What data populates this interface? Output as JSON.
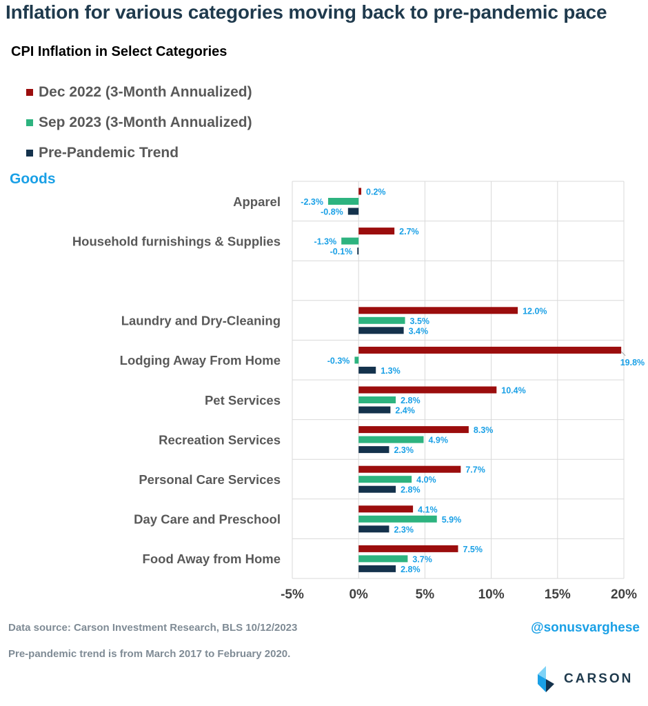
{
  "headline": "Inflation for various categories moving back to pre-pandemic pace",
  "section_label": "Goods",
  "footer": {
    "source": "Data source: Carson Investment Research, BLS   10/12/2023",
    "note": "Pre-pandemic trend is from March 2017 to February 2020.",
    "handle": "@sonusvarghese",
    "logo_text": "CARSON"
  },
  "colors": {
    "dec2022": "#9b0d0d",
    "sep2023": "#2db37f",
    "pre": "#14324c",
    "label": "#1aa0e6",
    "headline": "#1f3a4d",
    "grid": "#d9d9d9"
  },
  "chart_data": {
    "type": "bar",
    "orientation": "horizontal",
    "title": "CPI Inflation in Select Categories",
    "xlim": [
      -5,
      20
    ],
    "x_ticks": [
      "-5%",
      "0%",
      "5%",
      "10%",
      "15%",
      "20%"
    ],
    "grid": true,
    "legend_position": "top-left",
    "categories": [
      "Apparel",
      "Household furnishings & Supplies",
      "",
      "Laundry and Dry-Cleaning",
      "Lodging Away From Home",
      "Pet Services",
      "Recreation Services",
      "Personal Care Services",
      "Day Care and Preschool",
      "Food Away from Home"
    ],
    "series": [
      {
        "name": "Dec 2022 (3-Month Annualized)",
        "values": [
          0.2,
          2.7,
          null,
          12.0,
          19.8,
          10.4,
          8.3,
          7.7,
          4.1,
          7.5
        ],
        "labels": [
          "0.2%",
          "2.7%",
          "",
          "12.0%",
          "19.8%",
          "10.4%",
          "8.3%",
          "7.7%",
          "4.1%",
          "7.5%"
        ]
      },
      {
        "name": "Sep 2023 (3-Month Annualized)",
        "values": [
          -2.3,
          -1.3,
          null,
          3.5,
          -0.3,
          2.8,
          4.9,
          4.0,
          5.9,
          3.7
        ],
        "labels": [
          "-2.3%",
          "-1.3%",
          "",
          "3.5%",
          "-0.3%",
          "2.8%",
          "4.9%",
          "4.0%",
          "5.9%",
          "3.7%"
        ]
      },
      {
        "name": "Pre-Pandemic Trend",
        "values": [
          -0.8,
          -0.1,
          null,
          3.4,
          1.3,
          2.4,
          2.3,
          2.8,
          2.3,
          2.8
        ],
        "labels": [
          "-0.8%",
          "-0.1%",
          "",
          "3.4%",
          "1.3%",
          "2.4%",
          "2.3%",
          "2.8%",
          "2.3%",
          "2.8%"
        ]
      }
    ]
  }
}
